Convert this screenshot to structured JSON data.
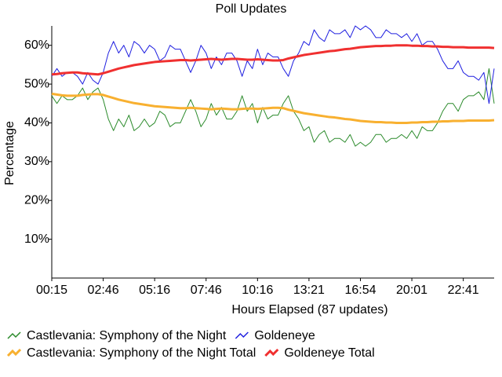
{
  "chart_data": {
    "type": "line",
    "title": "Poll Updates",
    "x_label": "Hours Elapsed (87 updates)",
    "y_label": "Percentage",
    "categories": [
      "00:15",
      null,
      null,
      null,
      null,
      null,
      null,
      null,
      null,
      null,
      "02:46",
      null,
      null,
      null,
      null,
      null,
      null,
      null,
      null,
      null,
      "05:16",
      null,
      null,
      null,
      null,
      null,
      null,
      null,
      null,
      null,
      "07:46",
      null,
      null,
      null,
      null,
      null,
      null,
      null,
      null,
      null,
      "10:16",
      null,
      null,
      null,
      null,
      null,
      null,
      null,
      null,
      null,
      "13:21",
      null,
      null,
      null,
      null,
      null,
      null,
      null,
      null,
      null,
      "16:54",
      null,
      null,
      null,
      null,
      null,
      null,
      null,
      null,
      null,
      "20:01",
      null,
      null,
      null,
      null,
      null,
      null,
      null,
      null,
      null,
      "22:41",
      null,
      null,
      null,
      null,
      null,
      null
    ],
    "ylim": [
      0,
      65
    ],
    "yticks": [
      {
        "value": 10,
        "label": "10%"
      },
      {
        "value": 20,
        "label": "20%"
      },
      {
        "value": 30,
        "label": "30%"
      },
      {
        "value": 40,
        "label": "40%"
      },
      {
        "value": 50,
        "label": "50%"
      },
      {
        "value": 60,
        "label": "60%"
      }
    ],
    "grid": false,
    "series": [
      {
        "name": "Castlevania: Symphony of the Night",
        "color": "#2a8a2a",
        "line_width": 1,
        "values": [
          47,
          45,
          47,
          46,
          46,
          47,
          49,
          46,
          48,
          49,
          46,
          41,
          38,
          41,
          39,
          42,
          38,
          39,
          41,
          39,
          40,
          43,
          42,
          39,
          40,
          40,
          43,
          46,
          43,
          39,
          41,
          45,
          42,
          44,
          41,
          41,
          43,
          47,
          43,
          45,
          40,
          44,
          41,
          42,
          42,
          45,
          47,
          43,
          41,
          38,
          39,
          35,
          37,
          38,
          35,
          36,
          36,
          35,
          37,
          34,
          35,
          34,
          35,
          37,
          37,
          35,
          36,
          36,
          37,
          36,
          38,
          36,
          39,
          38,
          38,
          40,
          43,
          45,
          45,
          43,
          46,
          47,
          47,
          48,
          46,
          54,
          45
        ]
      },
      {
        "name": "Goldeneye",
        "color": "#2020e0",
        "line_width": 1,
        "values": [
          52,
          54,
          52,
          53,
          53,
          52,
          50,
          53,
          51,
          50,
          53,
          58,
          61,
          58,
          60,
          57,
          61,
          60,
          58,
          60,
          59,
          56,
          57,
          60,
          59,
          59,
          56,
          53,
          56,
          60,
          58,
          54,
          57,
          55,
          58,
          58,
          56,
          52,
          56,
          54,
          59,
          55,
          58,
          57,
          57,
          54,
          52,
          56,
          58,
          61,
          60,
          64,
          62,
          61,
          64,
          63,
          63,
          64,
          62,
          65,
          64,
          65,
          64,
          62,
          62,
          64,
          63,
          63,
          62,
          63,
          61,
          63,
          60,
          61,
          61,
          59,
          56,
          54,
          54,
          56,
          53,
          52,
          52,
          51,
          53,
          45,
          54
        ]
      },
      {
        "name": "Castlevania: Symphony of the Night Total",
        "color": "#f8b030",
        "line_width": 3,
        "values": [
          47.5,
          47.3,
          47.1,
          47,
          47,
          47,
          47.2,
          47.3,
          47.4,
          47.4,
          47.2,
          46.8,
          46.4,
          46,
          45.7,
          45.4,
          45.1,
          44.9,
          44.7,
          44.5,
          44.3,
          44.2,
          44.1,
          44,
          43.9,
          43.8,
          43.8,
          43.9,
          43.8,
          43.7,
          43.6,
          43.5,
          43.6,
          43.7,
          43.6,
          43.5,
          43.5,
          43.6,
          43.7,
          43.7,
          43.6,
          43.7,
          43.8,
          43.9,
          43.9,
          43.8,
          43.4,
          43.1,
          42.8,
          42.5,
          42.3,
          42.1,
          41.9,
          41.7,
          41.5,
          41.4,
          41.2,
          41,
          40.9,
          40.7,
          40.5,
          40.4,
          40.3,
          40.2,
          40.2,
          40.1,
          40.1,
          40,
          40,
          40,
          40.1,
          40.1,
          40.2,
          40.2,
          40.3,
          40.3,
          40.4,
          40.4,
          40.5,
          40.5,
          40.5,
          40.6,
          40.6,
          40.6,
          40.6,
          40.6,
          40.7
        ]
      },
      {
        "name": "Goldeneye Total",
        "color": "#f03030",
        "line_width": 3,
        "values": [
          52.5,
          52.6,
          52.8,
          52.9,
          53,
          53,
          52.8,
          52.7,
          52.6,
          52.5,
          52.8,
          53.2,
          53.6,
          54,
          54.3,
          54.6,
          54.9,
          55.1,
          55.3,
          55.5,
          55.7,
          55.8,
          55.9,
          56,
          56.1,
          56.2,
          56.2,
          56.1,
          56.2,
          56.3,
          56.4,
          56.5,
          56.4,
          56.3,
          56.4,
          56.5,
          56.5,
          56.4,
          56.3,
          56.3,
          56.4,
          56.3,
          56.2,
          56.1,
          56.1,
          56.2,
          56.6,
          56.9,
          57.2,
          57.5,
          57.7,
          57.9,
          58.1,
          58.3,
          58.5,
          58.6,
          58.8,
          59,
          59.1,
          59.3,
          59.5,
          59.6,
          59.7,
          59.8,
          59.8,
          59.9,
          59.9,
          60,
          60,
          60,
          59.9,
          59.9,
          59.8,
          59.8,
          59.7,
          59.7,
          59.6,
          59.6,
          59.5,
          59.5,
          59.5,
          59.4,
          59.4,
          59.4,
          59.4,
          59.4,
          59.3
        ]
      }
    ]
  }
}
